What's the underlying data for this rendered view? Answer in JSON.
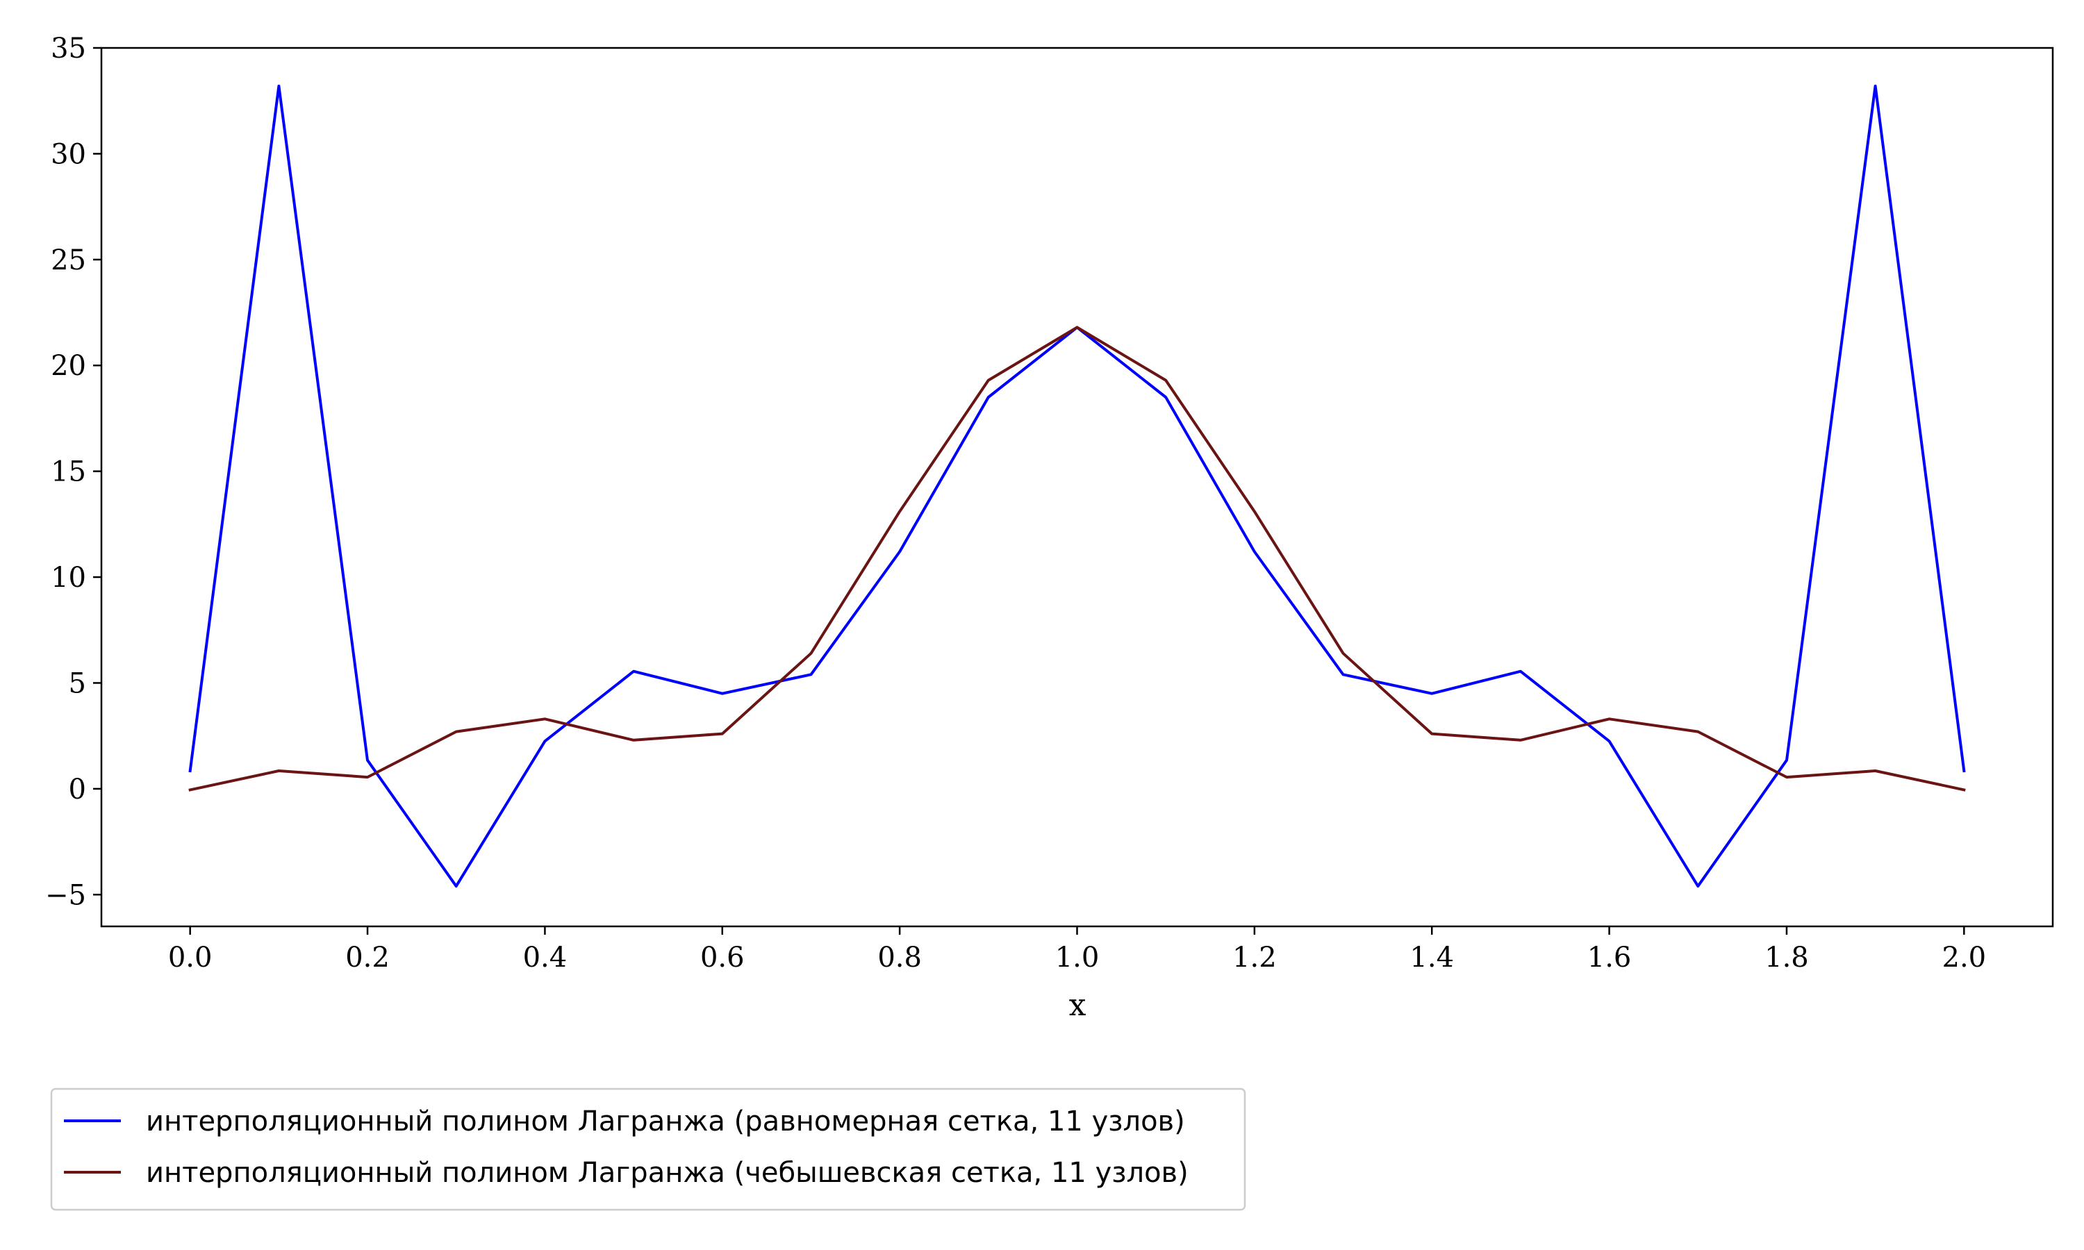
{
  "chart_data": {
    "type": "line",
    "title": "",
    "xlabel": "x",
    "ylabel": "",
    "xlim": [
      -0.1,
      2.1
    ],
    "ylim": [
      -6.5,
      35
    ],
    "xticks": [
      0.0,
      0.2,
      0.4,
      0.6,
      0.8,
      1.0,
      1.2,
      1.4,
      1.6,
      1.8,
      2.0
    ],
    "xtick_labels": [
      "0.0",
      "0.2",
      "0.4",
      "0.6",
      "0.8",
      "1.0",
      "1.2",
      "1.4",
      "1.6",
      "1.8",
      "2.0"
    ],
    "yticks": [
      -5,
      0,
      5,
      10,
      15,
      20,
      25,
      30,
      35
    ],
    "ytick_labels": [
      "−5",
      "0",
      "5",
      "10",
      "15",
      "20",
      "25",
      "30",
      "35"
    ],
    "grid": false,
    "legend_position": "bottom-left, outside plot",
    "x": [
      0.0,
      0.1,
      0.2,
      0.3,
      0.4,
      0.5,
      0.6,
      0.7,
      0.8,
      0.9,
      1.0,
      1.1,
      1.2,
      1.3,
      1.4,
      1.5,
      1.6,
      1.7,
      1.8,
      1.9,
      2.0
    ],
    "series": [
      {
        "name": "интерполяционный полином Лагранжа (равномерная сетка, 11 узлов)",
        "color": "#0000ff",
        "values": [
          0.85,
          33.2,
          1.35,
          -4.6,
          2.25,
          5.55,
          4.5,
          5.4,
          11.2,
          18.5,
          21.8,
          18.5,
          11.2,
          5.4,
          4.5,
          5.55,
          2.25,
          -4.6,
          1.35,
          33.2,
          0.85
        ]
      },
      {
        "name": "интерполяционный полином Лагранжа (чебышевская сетка, 11 узлов)",
        "color": "#6b1414",
        "values": [
          -0.05,
          0.85,
          0.55,
          2.7,
          3.3,
          2.3,
          2.6,
          6.4,
          13.1,
          19.3,
          21.8,
          19.3,
          13.1,
          6.4,
          2.6,
          2.3,
          3.3,
          2.7,
          0.55,
          0.85,
          -0.05
        ]
      }
    ]
  }
}
